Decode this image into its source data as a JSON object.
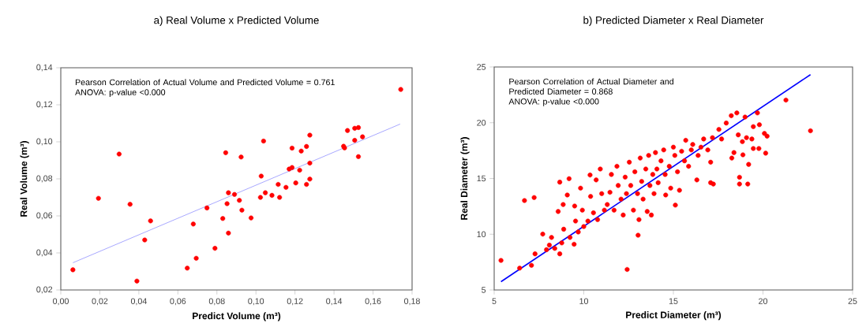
{
  "chart_data": [
    {
      "type": "scatter",
      "title": "a) Real Volume x Predicted Volume",
      "xlabel": "Predict Volume (m³)",
      "ylabel": "Real Volume (m³)",
      "annotations": [
        "Pearson Correlation of Actual Volume and Predicted Volume = 0.761",
        "ANOVA: p-value <0.000"
      ],
      "xlim": [
        0.0,
        0.18
      ],
      "ylim": [
        0.02,
        0.14
      ],
      "xticks": [
        {
          "value": 0.0,
          "label": "0,00"
        },
        {
          "value": 0.02,
          "label": "0,02"
        },
        {
          "value": 0.04,
          "label": "0,04"
        },
        {
          "value": 0.06,
          "label": "0,06"
        },
        {
          "value": 0.08,
          "label": "0,08"
        },
        {
          "value": 0.1,
          "label": "0,10"
        },
        {
          "value": 0.12,
          "label": "0,12"
        },
        {
          "value": 0.14,
          "label": "0,14"
        },
        {
          "value": 0.16,
          "label": "0,16"
        },
        {
          "value": 0.18,
          "label": "0,18"
        }
      ],
      "yticks": [
        {
          "value": 0.02,
          "label": "0,02"
        },
        {
          "value": 0.04,
          "label": "0,04"
        },
        {
          "value": 0.06,
          "label": "0,06"
        },
        {
          "value": 0.08,
          "label": "0,08"
        },
        {
          "value": 0.1,
          "label": "0,10"
        },
        {
          "value": 0.12,
          "label": "0,12"
        },
        {
          "value": 0.14,
          "label": "0,14"
        }
      ],
      "grid": false,
      "marker": "circle",
      "series": [
        {
          "color": "#ff0000",
          "x": [
            0.0062,
            0.0193,
            0.0299,
            0.0355,
            0.039,
            0.043,
            0.046,
            0.0648,
            0.0679,
            0.0694,
            0.0749,
            0.079,
            0.083,
            0.0845,
            0.0852,
            0.0859,
            0.0859,
            0.089,
            0.0915,
            0.0924,
            0.0928,
            0.0975,
            0.1023,
            0.1027,
            0.1039,
            0.1048,
            0.1082,
            0.1114,
            0.1121,
            0.1154,
            0.117,
            0.1185,
            0.1185,
            0.1204,
            0.1224,
            0.1232,
            0.1259,
            0.1259,
            0.1276,
            0.1276,
            0.1276,
            0.1449,
            0.1454,
            0.1469,
            0.1506,
            0.1506,
            0.1525,
            0.1525,
            0.1546,
            0.1742
          ],
          "values": [
            0.0309,
            0.0695,
            0.0934,
            0.0663,
            0.0248,
            0.047,
            0.0573,
            0.0318,
            0.0556,
            0.0371,
            0.0643,
            0.0425,
            0.0586,
            0.0941,
            0.0666,
            0.0725,
            0.0507,
            0.0716,
            0.0684,
            0.0918,
            0.0631,
            0.0589,
            0.07,
            0.0815,
            0.1004,
            0.0725,
            0.0711,
            0.077,
            0.07,
            0.0754,
            0.0853,
            0.0861,
            0.0966,
            0.0778,
            0.0847,
            0.095,
            0.0975,
            0.077,
            0.0885,
            0.0799,
            0.1036,
            0.0976,
            0.0967,
            0.1061,
            0.1073,
            0.1008,
            0.1077,
            0.092,
            0.1027,
            0.1283
          ]
        },
        {
          "type": "line",
          "color": "#7b7bff",
          "marker": "none",
          "x": [
            0.0062,
            0.1739
          ],
          "values": [
            0.0347,
            0.1096
          ]
        }
      ]
    },
    {
      "type": "scatter",
      "title": "b) Predicted Diameter x Real Diameter",
      "xlabel": "Predict Diameter (m³)",
      "ylabel": "Real Diameter (m³)",
      "annotations": [
        "Pearson Correlation of Actual Diameter and Predicted Diameter = 0.868",
        "ANOVA: p-value <0.000"
      ],
      "xlim": [
        5,
        25
      ],
      "ylim": [
        5,
        25
      ],
      "xticks": [
        5,
        10,
        15,
        20,
        25
      ],
      "yticks": [
        5,
        10,
        15,
        20,
        25
      ],
      "grid": false,
      "marker": "circle",
      "series": [
        {
          "color": "#ff0000",
          "x": [
            5.38,
            6.42,
            6.69,
            7.08,
            7.23,
            7.28,
            7.71,
            7.92,
            8.08,
            8.2,
            8.38,
            8.57,
            8.66,
            8.66,
            8.85,
            8.88,
            8.77,
            9.08,
            9.18,
            9.23,
            9.46,
            9.49,
            9.54,
            9.69,
            9.82,
            9.92,
            10.0,
            10.23,
            10.35,
            10.38,
            10.54,
            10.69,
            10.77,
            10.92,
            11.0,
            11.15,
            11.31,
            11.46,
            11.54,
            11.69,
            11.85,
            11.92,
            12.08,
            12.2,
            12.31,
            12.38,
            12.42,
            12.54,
            12.62,
            12.77,
            12.85,
            13.0,
            13.03,
            13.08,
            13.15,
            13.23,
            13.31,
            13.46,
            13.54,
            13.62,
            13.69,
            13.77,
            13.85,
            13.92,
            14.0,
            14.08,
            14.15,
            14.31,
            14.46,
            14.54,
            14.57,
            14.77,
            14.85,
            15.0,
            15.08,
            15.11,
            15.23,
            15.34,
            15.46,
            15.62,
            15.69,
            15.85,
            16.0,
            16.08,
            16.31,
            16.38,
            16.54,
            16.69,
            16.92,
            17.08,
            17.08,
            17.18,
            17.23,
            17.54,
            17.69,
            17.95,
            18.23,
            18.26,
            18.38,
            18.54,
            18.62,
            18.69,
            18.69,
            18.85,
            18.88,
            19.0,
            19.08,
            19.15,
            19.2,
            19.38,
            19.46,
            19.46,
            19.69,
            19.77,
            19.8,
            20.08,
            20.15,
            20.23,
            21.28,
            22.65
          ],
          "values": [
            7.65,
            6.96,
            13.02,
            7.21,
            13.29,
            8.24,
            10.01,
            8.61,
            9.02,
            9.71,
            8.73,
            12.04,
            14.67,
            8.24,
            12.66,
            10.45,
            9.22,
            13.52,
            14.98,
            9.71,
            9.1,
            12.53,
            11.18,
            10.2,
            14.13,
            12.16,
            10.69,
            11.18,
            15.31,
            13.39,
            11.92,
            14.87,
            11.31,
            15.85,
            13.64,
            12.16,
            12.66,
            13.76,
            15.36,
            12.16,
            16.09,
            14.37,
            13.15,
            11.72,
            15.12,
            13.64,
            6.84,
            16.46,
            14.37,
            12.16,
            15.6,
            13.64,
            9.91,
            11.31,
            16.83,
            14.74,
            13.15,
            15.85,
            12.04,
            17.07,
            14.37,
            11.72,
            15.36,
            13.64,
            17.32,
            15.85,
            14.62,
            16.58,
            17.56,
            15.36,
            13.52,
            16.09,
            14.13,
            17.81,
            17.07,
            12.61,
            15.6,
            13.94,
            17.44,
            16.58,
            18.42,
            16.09,
            17.56,
            18.05,
            14.87,
            17.07,
            17.81,
            18.54,
            17.56,
            16.46,
            14.62,
            18.66,
            14.5,
            19.4,
            18.54,
            19.97,
            20.63,
            16.83,
            17.32,
            20.88,
            18.91,
            15.11,
            14.5,
            18.3,
            17.12,
            20.51,
            18.66,
            14.5,
            16.26,
            18.54,
            19.65,
            17.69,
            20.88,
            17.69,
            19.82,
            19.04,
            17.27,
            18.79,
            22.03,
            19.28
          ]
        },
        {
          "type": "line",
          "color": "#0000ff",
          "marker": "none",
          "x": [
            5.38,
            22.65
          ],
          "values": [
            5.74,
            24.31
          ]
        }
      ]
    }
  ]
}
